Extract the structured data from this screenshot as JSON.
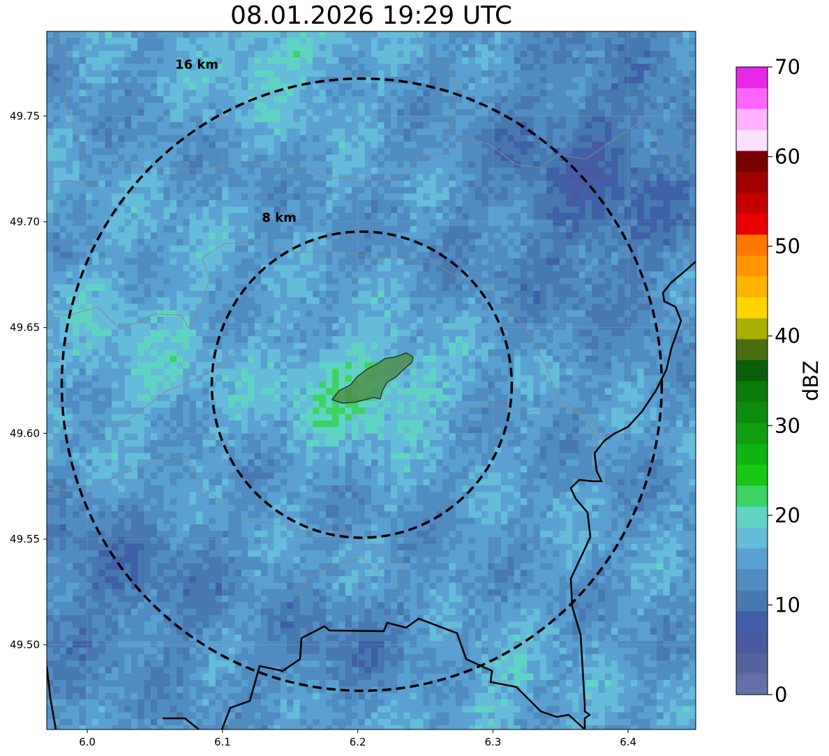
{
  "title": "08.01.2026 19:29 UTC",
  "map": {
    "lon_range": [
      5.97,
      6.45
    ],
    "lat_range": [
      49.46,
      49.79
    ],
    "lon_ticks": [
      "6.0",
      "6.1",
      "6.2",
      "6.3",
      "6.4"
    ],
    "lon_tick_values": [
      6.0,
      6.1,
      6.2,
      6.3,
      6.4
    ],
    "lat_ticks": [
      "49.75",
      "49.70",
      "49.65",
      "49.60",
      "49.55",
      "49.50"
    ],
    "lat_tick_values": [
      49.75,
      49.7,
      49.65,
      49.6,
      49.55,
      49.5
    ],
    "center": {
      "lon": 6.203,
      "lat": 49.623
    },
    "rings": [
      {
        "label": "8 km",
        "radius_km": 8
      },
      {
        "label": "16 km",
        "radius_km": 16
      }
    ]
  },
  "colorbar": {
    "label": "dBZ",
    "ticks": [
      "0",
      "10",
      "20",
      "30",
      "40",
      "50",
      "60",
      "70"
    ],
    "tick_values": [
      0,
      10,
      20,
      30,
      40,
      50,
      60,
      70
    ],
    "vmin": 0,
    "vmax": 70,
    "step": 2.5,
    "colors": [
      "#6470a8",
      "#56649e",
      "#4a5aa0",
      "#4060a8",
      "#4878b0",
      "#508cc0",
      "#5aa0d0",
      "#64bcd8",
      "#60d4c4",
      "#3cd264",
      "#14c814",
      "#10b410",
      "#0ea00e",
      "#0c8c0c",
      "#0a7a0a",
      "#086008",
      "#486e10",
      "#aaae00",
      "#ffd400",
      "#ffb400",
      "#ff9600",
      "#ff7800",
      "#e60000",
      "#c40000",
      "#a00000",
      "#780000",
      "#ffe0ff",
      "#ffb0ff",
      "#ff64ff",
      "#e628e6"
    ]
  }
}
